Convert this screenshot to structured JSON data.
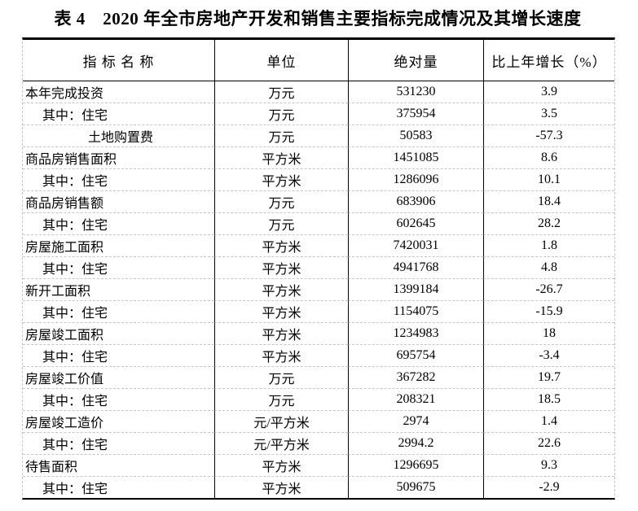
{
  "title": "表 4　2020 年全市房地产开发和销售主要指标完成情况及其增长速度",
  "table": {
    "headers": [
      "指 标 名 称",
      "单位",
      "绝对量",
      "比上年增长（%）"
    ],
    "rows": [
      {
        "name": "本年完成投资",
        "indent": 0,
        "unit": "万元",
        "value": "531230",
        "growth": "3.9"
      },
      {
        "name": "其中：住宅",
        "indent": 1,
        "unit": "万元",
        "value": "375954",
        "growth": "3.5"
      },
      {
        "name": "土地购置费",
        "indent": 2,
        "unit": "万元",
        "value": "50583",
        "growth": "-57.3"
      },
      {
        "name": "商品房销售面积",
        "indent": 0,
        "unit": "平方米",
        "value": "1451085",
        "growth": "8.6"
      },
      {
        "name": "其中：住宅",
        "indent": 1,
        "unit": "平方米",
        "value": "1286096",
        "growth": "10.1"
      },
      {
        "name": "商品房销售额",
        "indent": 0,
        "unit": "万元",
        "value": "683906",
        "growth": "18.4"
      },
      {
        "name": "其中：住宅",
        "indent": 1,
        "unit": "万元",
        "value": "602645",
        "growth": "28.2"
      },
      {
        "name": "房屋施工面积",
        "indent": 0,
        "unit": "平方米",
        "value": "7420031",
        "growth": "1.8"
      },
      {
        "name": "其中：住宅",
        "indent": 1,
        "unit": "平方米",
        "value": "4941768",
        "growth": "4.8"
      },
      {
        "name": "新开工面积",
        "indent": 0,
        "unit": "平方米",
        "value": "1399184",
        "growth": "-26.7"
      },
      {
        "name": "其中：住宅",
        "indent": 1,
        "unit": "平方米",
        "value": "1154075",
        "growth": "-15.9"
      },
      {
        "name": "房屋竣工面积",
        "indent": 0,
        "unit": "平方米",
        "value": "1234983",
        "growth": "18"
      },
      {
        "name": "其中：住宅",
        "indent": 1,
        "unit": "平方米",
        "value": "695754",
        "growth": "-3.4"
      },
      {
        "name": "房屋竣工价值",
        "indent": 0,
        "unit": "万元",
        "value": "367282",
        "growth": "19.7"
      },
      {
        "name": "其中：住宅",
        "indent": 1,
        "unit": "万元",
        "value": "208321",
        "growth": "18.5"
      },
      {
        "name": "房屋竣工造价",
        "indent": 0,
        "unit": "元/平方米",
        "value": "2974",
        "growth": "1.4"
      },
      {
        "name": "其中：住宅",
        "indent": 1,
        "unit": "元/平方米",
        "value": "2994.2",
        "growth": "22.6"
      },
      {
        "name": "待售面积",
        "indent": 0,
        "unit": "平方米",
        "value": "1296695",
        "growth": "9.3"
      },
      {
        "name": "其中：住宅",
        "indent": 1,
        "unit": "平方米",
        "value": "509675",
        "growth": "-2.9"
      }
    ]
  }
}
